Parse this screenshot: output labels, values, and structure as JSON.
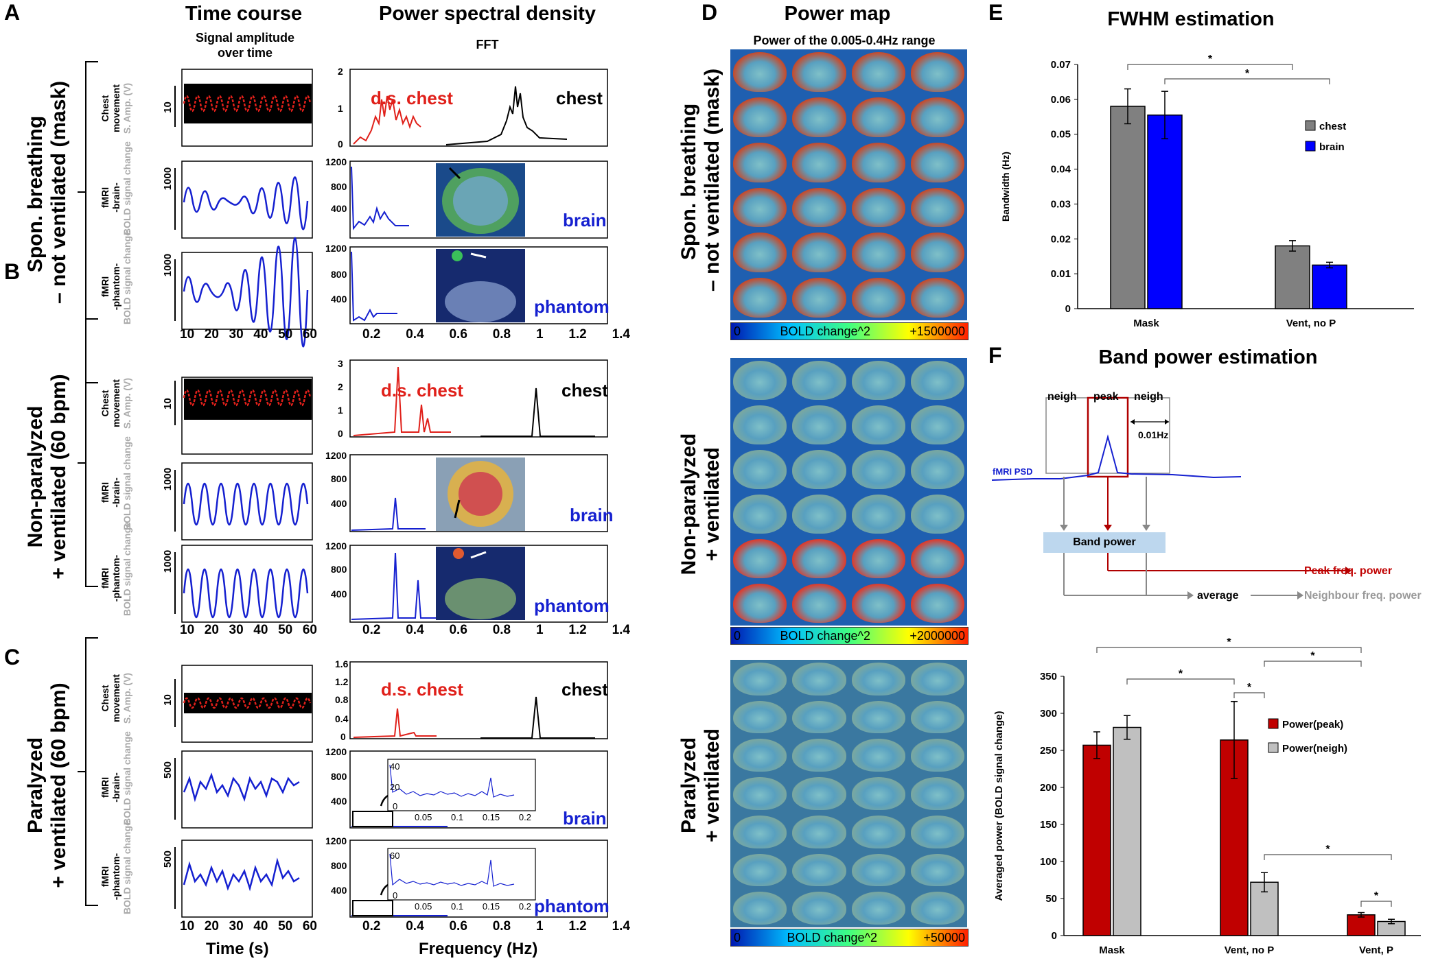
{
  "panels": {
    "A": "A",
    "B": "B",
    "C": "C",
    "D": "D",
    "E": "E",
    "F": "F"
  },
  "headers": {
    "time_course": "Time course",
    "time_course_sub": "Signal amplitude over time",
    "psd": "Power spectral density",
    "psd_sub": "FFT",
    "power_map": "Power map",
    "power_map_sub": "Power of the 0.005-0.4Hz range",
    "fwhm": "FWHM estimation",
    "band": "Band power estimation"
  },
  "conditions": {
    "A_line1": "Spon. breathing",
    "A_line2": "– not ventilated (mask)",
    "B_line1": "Non-paralyzed",
    "B_line2": "+ ventilated (60 bpm)",
    "C_line1": "Paralyzed",
    "C_line2": "+ ventilated (60 bpm)",
    "D_A_line1": "Spon. breathing",
    "D_A_line2": "– not ventilated (mask)",
    "D_B_line1": "Non-paralyzed",
    "D_B_line2": "+ ventilated",
    "D_C_line1": "Paralyzed",
    "D_C_line2": "+ ventilated"
  },
  "row_labels": {
    "chest1": "Chest",
    "chest2": "movement",
    "chest_amp": "S. Amp. (V)",
    "brain1": "fMRI",
    "brain2": "-brain-",
    "phantom1": "fMRI",
    "phantom2": "-phantom-",
    "bold": "BOLD signal change"
  },
  "trace_labels": {
    "ds_chest": "d.s. chest",
    "chest": "chest",
    "brain": "brain",
    "phantom": "phantom"
  },
  "axes": {
    "time": "Time (s)",
    "freq": "Frequency (Hz)",
    "time_ticks": [
      "10",
      "20",
      "30",
      "40",
      "50",
      "60"
    ],
    "freq_ticks": [
      "0.2",
      "0.4",
      "0.6",
      "0.8",
      "1",
      "1.2",
      "1.4"
    ],
    "inset_ticks": [
      "0.05",
      "0.1",
      "0.15",
      "0.2"
    ]
  },
  "scales": {
    "A_chest_y": [
      "0",
      "1",
      "2"
    ],
    "B_chest_y": [
      "0",
      "1",
      "2",
      "3"
    ],
    "C_chest_y": [
      "0",
      "0.4",
      "0.8",
      "1.2",
      "1.6"
    ],
    "fmri_y": [
      "400",
      "800",
      "1200"
    ],
    "A_brain_y": [
      "400",
      "800",
      "1200"
    ],
    "amp_10": "10",
    "amp_1000": "1000",
    "amp_500": "500",
    "inset_brain_y": [
      "0",
      "20",
      "40"
    ],
    "inset_phantom_y": [
      "0",
      "60"
    ]
  },
  "colorbars": {
    "A": {
      "min": "0",
      "label": "BOLD change^2",
      "max": "+1500000"
    },
    "B": {
      "min": "0",
      "label": "BOLD change^2",
      "max": "+2000000"
    },
    "C": {
      "min": "0",
      "label": "BOLD change^2",
      "max": "+50000"
    }
  },
  "fwhm_chart": {
    "ylabel": "Bandwidth (Hz)",
    "yticks": [
      "0",
      "0.01",
      "0.02",
      "0.03",
      "0.04",
      "0.05",
      "0.06",
      "0.07"
    ],
    "categories": [
      "Mask",
      "Vent, no P"
    ],
    "legend": [
      "chest",
      "brain"
    ],
    "sig": "*"
  },
  "band_schematic": {
    "neigh": "neigh",
    "peak": "peak",
    "freq": "0.01Hz",
    "psd": "fMRI PSD",
    "band_power": "Band power",
    "average": "average",
    "peak_power": "Peak freq. power",
    "neigh_power": "Neighbour freq. power"
  },
  "band_chart": {
    "ylabel": "Averaged power (BOLD signal change)",
    "yticks": [
      "0",
      "50",
      "100",
      "150",
      "200",
      "250",
      "300",
      "350"
    ],
    "categories": [
      "Mask",
      "Vent, no P",
      "Vent, P"
    ],
    "legend": [
      "Power(peak)",
      "Power(neigh)"
    ],
    "sig": "*"
  },
  "colors": {
    "red": "#e0201a",
    "blue": "#1520d0",
    "gray": "#808080",
    "lightgray": "#c0c0c0",
    "darkred": "#c00000",
    "brightblue": "#0000ff"
  },
  "chart_data": [
    {
      "type": "bar",
      "title": "FWHM estimation",
      "ylabel": "Bandwidth (Hz)",
      "ylim": [
        0,
        0.07
      ],
      "categories": [
        "Mask",
        "Vent, no P"
      ],
      "series": [
        {
          "name": "chest",
          "values": [
            0.058,
            0.018
          ],
          "errors": [
            0.005,
            0.0015
          ]
        },
        {
          "name": "brain",
          "values": [
            0.0555,
            0.0125
          ],
          "errors": [
            0.0068,
            0.0008
          ]
        }
      ],
      "significance": [
        {
          "from": "Mask chest",
          "to": "Vent, no P chest",
          "label": "*"
        },
        {
          "from": "Mask brain",
          "to": "Vent, no P brain",
          "label": "*"
        }
      ]
    },
    {
      "type": "bar",
      "title": "Band power estimation",
      "ylabel": "Averaged power (BOLD signal change)",
      "ylim": [
        0,
        350
      ],
      "categories": [
        "Mask",
        "Vent, no P",
        "Vent, P"
      ],
      "series": [
        {
          "name": "Power(peak)",
          "values": [
            257,
            264,
            28
          ],
          "errors": [
            18,
            52,
            3
          ]
        },
        {
          "name": "Power(neigh)",
          "values": [
            281,
            72,
            19
          ],
          "errors": [
            16,
            13,
            3
          ]
        }
      ],
      "significance": [
        {
          "from": "Mask peak",
          "to": "Vent, P peak",
          "label": "*"
        },
        {
          "from": "Mask neigh",
          "to": "Vent, no P peak",
          "label": "*"
        },
        {
          "from": "Vent, no P neigh",
          "to": "Vent, P peak",
          "label": "*"
        },
        {
          "from": "Vent, no P peak",
          "to": "Vent, no P neigh",
          "label": "*"
        },
        {
          "from": "Vent, no P neigh",
          "to": "Vent, P neigh",
          "label": "*"
        },
        {
          "from": "Vent, P peak",
          "to": "Vent, P neigh",
          "label": "*"
        }
      ]
    }
  ]
}
